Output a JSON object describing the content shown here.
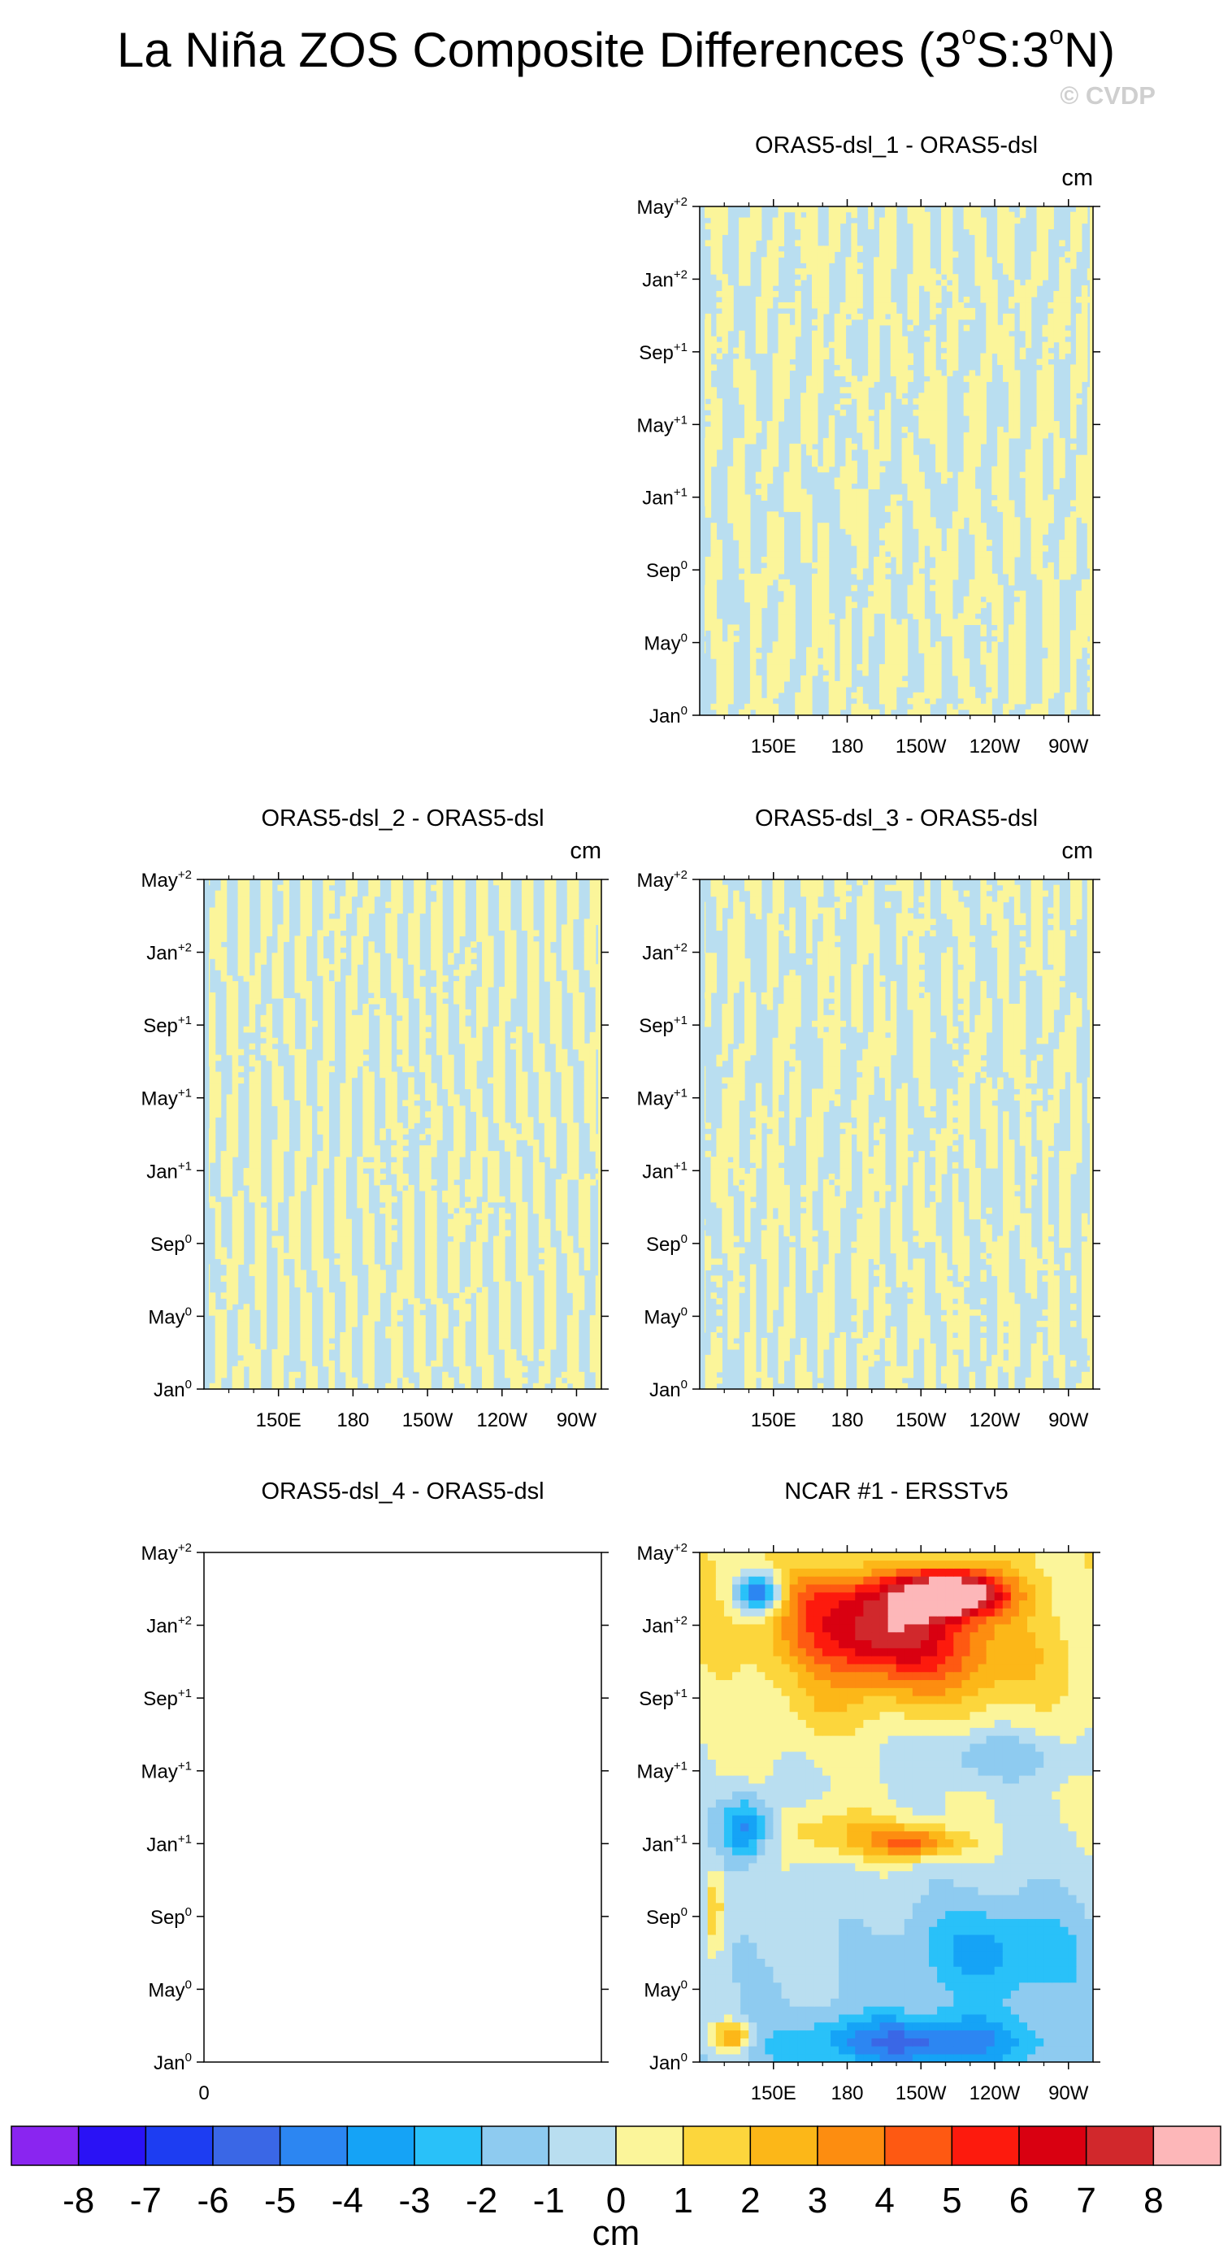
{
  "figure": {
    "title_prefix": "La Niña ZOS Composite Differences (3",
    "title_deg": "o",
    "title_mid": "S:3",
    "title_suffix": "N)",
    "watermark": "© CVDP"
  },
  "chart_data": [
    {
      "type": "heatmap",
      "title": "ORAS5-dsl_1 - ORAS5-dsl",
      "units": "cm",
      "xlabel": "",
      "ylabel": "",
      "x_ticks": [
        "150E",
        "180",
        "150W",
        "120W",
        "90W"
      ],
      "x_tick_lon": [
        150,
        180,
        210,
        240,
        270
      ],
      "xlim": [
        120,
        280
      ],
      "y_ticks": [
        {
          "m": "Jan",
          "s": "0"
        },
        {
          "m": "May",
          "s": "0"
        },
        {
          "m": "Sep",
          "s": "0"
        },
        {
          "m": "Jan",
          "s": "+1"
        },
        {
          "m": "May",
          "s": "+1"
        },
        {
          "m": "Sep",
          "s": "+1"
        },
        {
          "m": "Jan",
          "s": "+2"
        },
        {
          "m": "May",
          "s": "+2"
        }
      ],
      "values_range": [
        -1,
        1
      ],
      "pattern": "noise",
      "empty": false
    },
    {
      "type": "heatmap",
      "title": "ORAS5-dsl_2 - ORAS5-dsl",
      "units": "cm",
      "xlabel": "",
      "ylabel": "",
      "x_ticks": [
        "150E",
        "180",
        "150W",
        "120W",
        "90W"
      ],
      "x_tick_lon": [
        150,
        180,
        210,
        240,
        270
      ],
      "xlim": [
        120,
        280
      ],
      "y_ticks": [
        {
          "m": "Jan",
          "s": "0"
        },
        {
          "m": "May",
          "s": "0"
        },
        {
          "m": "Sep",
          "s": "0"
        },
        {
          "m": "Jan",
          "s": "+1"
        },
        {
          "m": "May",
          "s": "+1"
        },
        {
          "m": "Sep",
          "s": "+1"
        },
        {
          "m": "Jan",
          "s": "+2"
        },
        {
          "m": "May",
          "s": "+2"
        }
      ],
      "values_range": [
        -1,
        1
      ],
      "pattern": "noise",
      "empty": false
    },
    {
      "type": "heatmap",
      "title": "ORAS5-dsl_3 - ORAS5-dsl",
      "units": "cm",
      "xlabel": "",
      "ylabel": "",
      "x_ticks": [
        "150E",
        "180",
        "150W",
        "120W",
        "90W"
      ],
      "x_tick_lon": [
        150,
        180,
        210,
        240,
        270
      ],
      "xlim": [
        120,
        280
      ],
      "y_ticks": [
        {
          "m": "Jan",
          "s": "0"
        },
        {
          "m": "May",
          "s": "0"
        },
        {
          "m": "Sep",
          "s": "0"
        },
        {
          "m": "Jan",
          "s": "+1"
        },
        {
          "m": "May",
          "s": "+1"
        },
        {
          "m": "Sep",
          "s": "+1"
        },
        {
          "m": "Jan",
          "s": "+2"
        },
        {
          "m": "May",
          "s": "+2"
        }
      ],
      "values_range": [
        -1,
        1
      ],
      "pattern": "noise",
      "empty": false
    },
    {
      "type": "heatmap",
      "title": "ORAS5-dsl_4 - ORAS5-dsl",
      "units": "",
      "xlabel": "",
      "ylabel": "",
      "x_ticks": [
        "0"
      ],
      "x_tick_lon": [
        0
      ],
      "xlim": [
        0,
        1
      ],
      "y_ticks": [
        {
          "m": "Jan",
          "s": "0"
        },
        {
          "m": "May",
          "s": "0"
        },
        {
          "m": "Sep",
          "s": "0"
        },
        {
          "m": "Jan",
          "s": "+1"
        },
        {
          "m": "May",
          "s": "+1"
        },
        {
          "m": "Sep",
          "s": "+1"
        },
        {
          "m": "Jan",
          "s": "+2"
        },
        {
          "m": "May",
          "s": "+2"
        }
      ],
      "values_range": [
        0,
        0
      ],
      "pattern": "none",
      "empty": true
    },
    {
      "type": "heatmap",
      "title": "NCAR #1 - ERSSTv5",
      "units": "",
      "xlabel": "",
      "ylabel": "",
      "x_ticks": [
        "150E",
        "180",
        "150W",
        "120W",
        "90W"
      ],
      "x_tick_lon": [
        150,
        180,
        210,
        240,
        270
      ],
      "xlim": [
        120,
        280
      ],
      "y_ticks": [
        {
          "m": "Jan",
          "s": "0"
        },
        {
          "m": "May",
          "s": "0"
        },
        {
          "m": "Sep",
          "s": "0"
        },
        {
          "m": "Jan",
          "s": "+1"
        },
        {
          "m": "May",
          "s": "+1"
        },
        {
          "m": "Sep",
          "s": "+1"
        },
        {
          "m": "Jan",
          "s": "+2"
        },
        {
          "m": "May",
          "s": "+2"
        }
      ],
      "values_range": [
        -7,
        8.5
      ],
      "pattern": "anomaly",
      "empty": false
    }
  ],
  "colorbar": {
    "labels": [
      "-8",
      "-7",
      "-6",
      "-5",
      "-4",
      "-3",
      "-2",
      "-1",
      "0",
      "1",
      "2",
      "3",
      "4",
      "5",
      "6",
      "7",
      "8"
    ],
    "colors": [
      "#8a25f0",
      "#2a12f5",
      "#1d3df2",
      "#3a67e6",
      "#2c86f2",
      "#15a3f6",
      "#29c1f9",
      "#8ecbf0",
      "#b9def0",
      "#fbf59a",
      "#fcd63c",
      "#fcb718",
      "#fd8d10",
      "#fe5912",
      "#fd1a0d",
      "#d90011",
      "#d1282c",
      "#fdb7b9"
    ],
    "levels": [
      -8,
      -7,
      -6,
      -5,
      -4,
      -3,
      -2,
      -1,
      0,
      1,
      2,
      3,
      4,
      5,
      6,
      7,
      8
    ],
    "unit": "cm"
  }
}
